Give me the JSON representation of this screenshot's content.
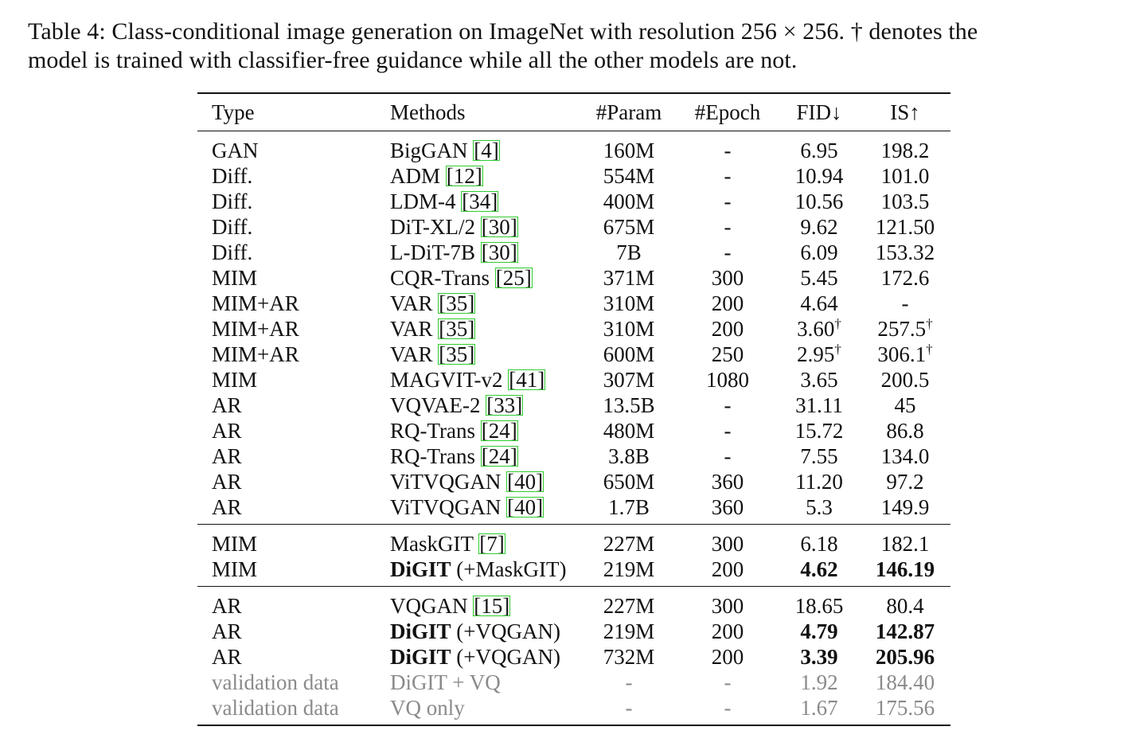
{
  "caption": "Table 4: Class-conditional image generation on ImageNet with resolution 256 × 256. † denotes the model is trained with classifier-free guidance while all the other models are not.",
  "caption_line1": "Table 4: Class-conditional image generation on ImageNet with resolution 256 × 256. † denotes the",
  "caption_line2": "model is trained with classifier-free guidance while all the other models are not.",
  "headers": {
    "type": "Type",
    "methods": "Methods",
    "param": "#Param",
    "epoch": "#Epoch",
    "fid": "FID↓",
    "is": "IS↑"
  },
  "group1": [
    {
      "type": "GAN",
      "method": "BigGAN",
      "cite": "[4]",
      "param": "160M",
      "epoch": "-",
      "fid": "6.95",
      "is": "198.2"
    },
    {
      "type": "Diff.",
      "method": "ADM",
      "cite": "[12]",
      "param": "554M",
      "epoch": "-",
      "fid": "10.94",
      "is": "101.0"
    },
    {
      "type": "Diff.",
      "method": "LDM-4",
      "cite": "[34]",
      "param": "400M",
      "epoch": "-",
      "fid": "10.56",
      "is": "103.5"
    },
    {
      "type": "Diff.",
      "method": "DiT-XL/2",
      "cite": "[30]",
      "param": "675M",
      "epoch": "-",
      "fid": "9.62",
      "is": "121.50"
    },
    {
      "type": "Diff.",
      "method": "L-DiT-7B",
      "cite": "[30]",
      "param": "7B",
      "epoch": "-",
      "fid": "6.09",
      "is": "153.32"
    },
    {
      "type": "MIM",
      "method": "CQR-Trans",
      "cite": "[25]",
      "param": "371M",
      "epoch": "300",
      "fid": "5.45",
      "is": "172.6"
    },
    {
      "type": "MIM+AR",
      "method": "VAR",
      "cite": "[35]",
      "param": "310M",
      "epoch": "200",
      "fid": "4.64",
      "is": "-"
    },
    {
      "type": "MIM+AR",
      "method": "VAR",
      "cite": "[35]",
      "param": "310M",
      "epoch": "200",
      "fid": "3.60",
      "fid_mark": "†",
      "is": "257.5",
      "is_mark": "†"
    },
    {
      "type": "MIM+AR",
      "method": "VAR",
      "cite": "[35]",
      "param": "600M",
      "epoch": "250",
      "fid": "2.95",
      "fid_mark": "†",
      "is": "306.1",
      "is_mark": "†"
    },
    {
      "type": "MIM",
      "method": "MAGVIT-v2",
      "cite": "[41]",
      "param": "307M",
      "epoch": "1080",
      "fid": "3.65",
      "is": "200.5"
    },
    {
      "type": "AR",
      "method": "VQVAE-2",
      "cite": "[33]",
      "param": "13.5B",
      "epoch": "-",
      "fid": "31.11",
      "is": "45"
    },
    {
      "type": "AR",
      "method": "RQ-Trans",
      "cite": "[24]",
      "param": "480M",
      "epoch": "-",
      "fid": "15.72",
      "is": "86.8"
    },
    {
      "type": "AR",
      "method": "RQ-Trans",
      "cite": "[24]",
      "param": "3.8B",
      "epoch": "-",
      "fid": "7.55",
      "is": "134.0"
    },
    {
      "type": "AR",
      "method": "ViTVQGAN",
      "cite": "[40]",
      "param": "650M",
      "epoch": "360",
      "fid": "11.20",
      "is": "97.2"
    },
    {
      "type": "AR",
      "method": "ViTVQGAN",
      "cite": "[40]",
      "param": "1.7B",
      "epoch": "360",
      "fid": "5.3",
      "is": "149.9"
    }
  ],
  "group2": [
    {
      "type": "MIM",
      "method": "MaskGIT",
      "cite": "[7]",
      "param": "227M",
      "epoch": "300",
      "fid": "6.18",
      "is": "182.1"
    },
    {
      "type": "MIM",
      "method_bold": "DiGIT",
      "method_rest": " (+MaskGIT)",
      "param": "219M",
      "epoch": "200",
      "fid": "4.62",
      "is": "146.19"
    }
  ],
  "group3": [
    {
      "type": "AR",
      "method": "VQGAN",
      "cite": "[15]",
      "param": "227M",
      "epoch": "300",
      "fid": "18.65",
      "is": "80.4"
    },
    {
      "type": "AR",
      "method_bold": "DiGIT",
      "method_rest": " (+VQGAN)",
      "param": "219M",
      "epoch": "200",
      "fid": "4.79",
      "is": "142.87"
    },
    {
      "type": "AR",
      "method_bold": "DiGIT",
      "method_rest": " (+VQGAN)",
      "param": "732M",
      "epoch": "200",
      "fid": "3.39",
      "is": "205.96"
    },
    {
      "type": "validation data",
      "method": "DiGIT + VQ",
      "param": "-",
      "epoch": "-",
      "fid": "1.92",
      "is": "184.40"
    },
    {
      "type": "validation data",
      "method": "VQ only",
      "param": "-",
      "epoch": "-",
      "fid": "1.67",
      "is": "175.56"
    }
  ],
  "colors": {
    "text": "#111111",
    "citation_box": "#2fcc2f",
    "validation_text": "#8a8a8a"
  }
}
